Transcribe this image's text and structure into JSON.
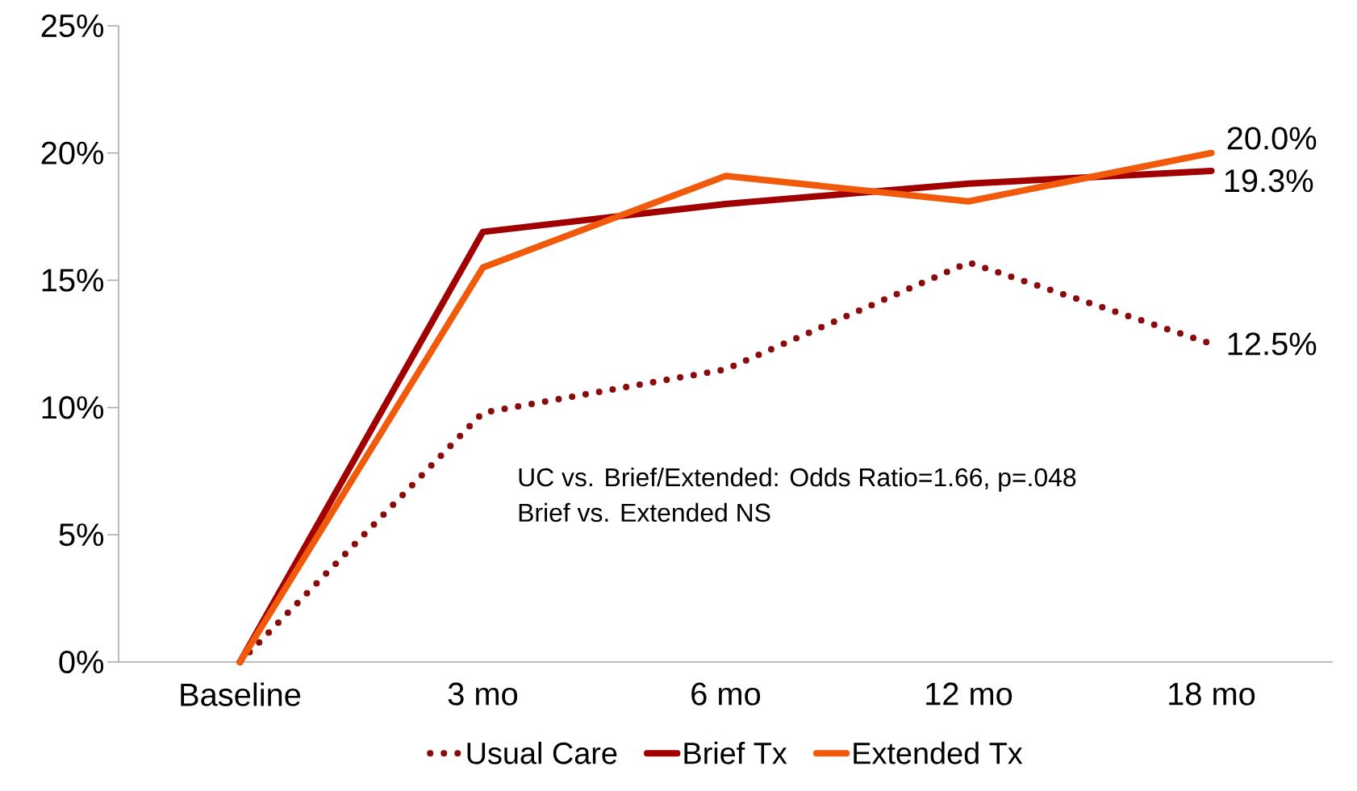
{
  "chart_data": {
    "type": "line",
    "categories": [
      "Baseline",
      "3 mo",
      "6 mo",
      "12 mo",
      "18 mo"
    ],
    "series": [
      {
        "name": "Usual Care",
        "color": "#8b0a0a",
        "line_style": "dotted",
        "values": [
          0,
          9.8,
          11.5,
          15.7,
          12.5
        ],
        "value_labels": [
          null,
          null,
          null,
          null,
          "12.5%"
        ]
      },
      {
        "name": "Brief Tx",
        "color": "#a00000",
        "line_style": "solid",
        "values": [
          0,
          16.9,
          18.0,
          18.8,
          19.3
        ],
        "value_labels": [
          null,
          null,
          null,
          null,
          "19.3%"
        ]
      },
      {
        "name": "Extended Tx",
        "color": "#f05a0a",
        "line_style": "solid",
        "values": [
          0,
          15.5,
          19.1,
          18.1,
          20.0
        ],
        "value_labels": [
          null,
          null,
          null,
          null,
          "20.0%"
        ]
      }
    ],
    "ylim": [
      0,
      25
    ],
    "yticks": [
      {
        "value": 0,
        "label": "0%"
      },
      {
        "value": 5,
        "label": "5%"
      },
      {
        "value": 10,
        "label": "10%"
      },
      {
        "value": 15,
        "label": "15%"
      },
      {
        "value": 20,
        "label": "20%"
      },
      {
        "value": 25,
        "label": "25%"
      }
    ],
    "annotations": [
      "UC vs. Brief/Extended: Odds Ratio=1.66, p=.048",
      "Brief vs. Extended NS"
    ],
    "legend": "bottom",
    "marker": "none",
    "grid": false
  }
}
